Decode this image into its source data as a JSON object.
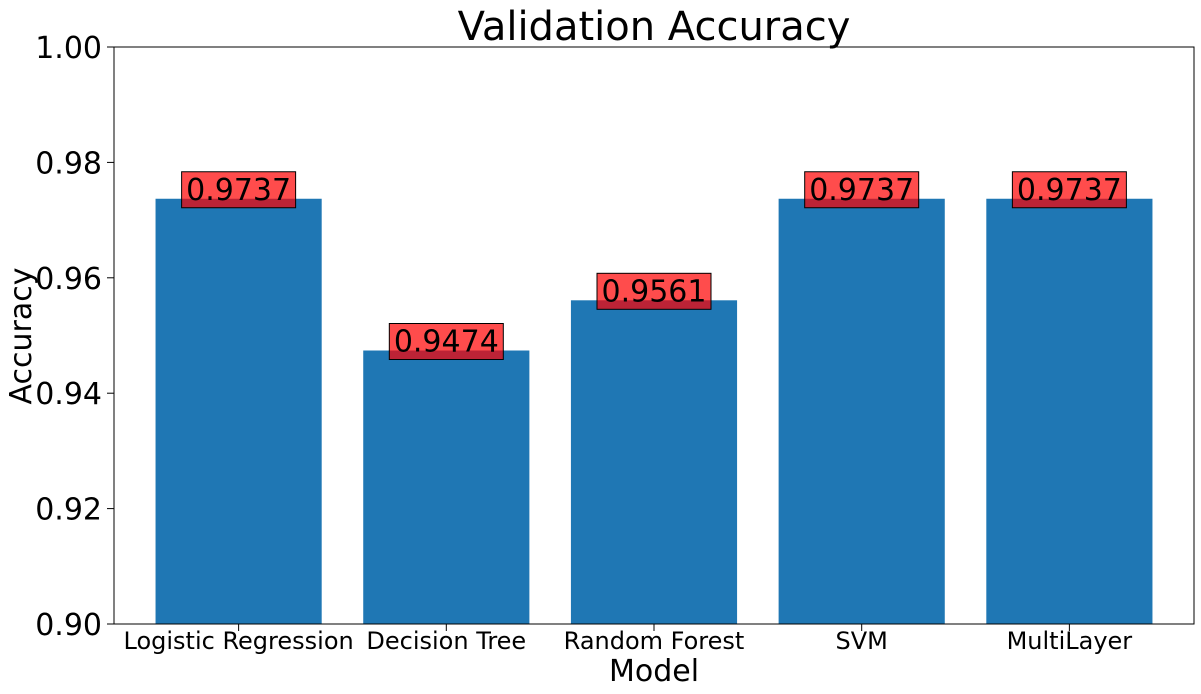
{
  "chart_data": {
    "type": "bar",
    "title": "Validation Accuracy",
    "xlabel": "Model",
    "ylabel": "Accuracy",
    "categories": [
      "Logistic Regression",
      "Decision Tree",
      "Random Forest",
      "SVM",
      "MultiLayer"
    ],
    "values": [
      0.9737,
      0.9474,
      0.9561,
      0.9737,
      0.9737
    ],
    "data_labels": [
      "0.9737",
      "0.9474",
      "0.9561",
      "0.9737",
      "0.9737"
    ],
    "ylim": [
      0.9,
      1.0
    ],
    "yticks": [
      0.9,
      0.92,
      0.94,
      0.96,
      0.98,
      1.0
    ],
    "ytick_labels": [
      "0.90",
      "0.92",
      "0.94",
      "0.96",
      "0.98",
      "1.00"
    ],
    "grid": false,
    "legend": "none",
    "bar_color": "#1f77b4",
    "label_box_color": "#ff0000"
  }
}
